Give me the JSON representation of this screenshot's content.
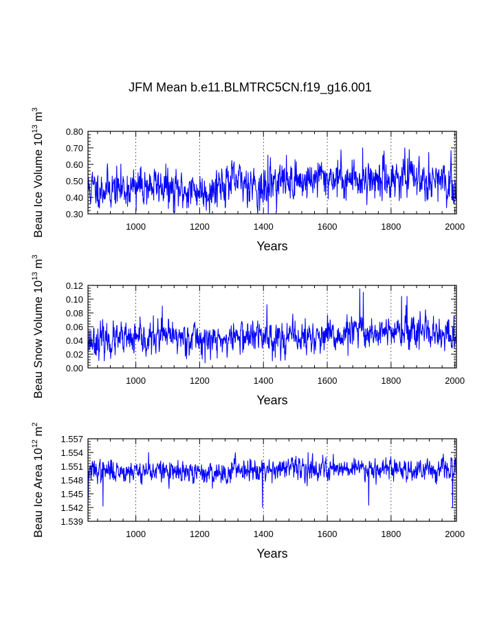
{
  "title": "JFM Mean b.e11.BLMTRC5CN.f19_g16.001",
  "line_color": "#0000ff",
  "chart_data": [
    {
      "type": "line",
      "name": "ice-volume",
      "ylabel": "Beau Ice Volume 10",
      "ylabel_sup": "13",
      "ylabel_unit": " m",
      "ylabel_unit_sup": "3",
      "xlabel": "Years",
      "xlim": [
        850,
        2005
      ],
      "ylim": [
        0.3,
        0.8
      ],
      "x_ticks": [
        1000,
        1200,
        1400,
        1600,
        1800,
        2000
      ],
      "x_tick_labels": [
        "1000",
        "1200",
        "1400",
        "1600",
        "1800",
        "2000"
      ],
      "y_ticks": [
        0.3,
        0.4,
        0.5,
        0.6,
        0.7,
        0.8
      ],
      "y_tick_labels": [
        "0.30",
        "0.40",
        "0.50",
        "0.60",
        "0.70",
        "0.80"
      ],
      "grid_x": "dashed",
      "series_params": {
        "x_start": 850,
        "x_end": 2005,
        "mean": 0.47,
        "sd": 0.055,
        "seed": 11,
        "segment_means": [
          [
            850,
            0.455
          ],
          [
            1000,
            0.47
          ],
          [
            1100,
            0.44
          ],
          [
            1250,
            0.49
          ],
          [
            1380,
            0.44
          ],
          [
            1420,
            0.5
          ],
          [
            1550,
            0.52
          ],
          [
            1650,
            0.51
          ],
          [
            1800,
            0.52
          ],
          [
            1950,
            0.47
          ]
        ],
        "spikes": [
          [
            1711,
            0.7
          ],
          [
            1843,
            0.7
          ],
          [
            1414,
            0.655
          ],
          [
            1388,
            0.32
          ],
          [
            1122,
            0.31
          ],
          [
            1001,
            0.32
          ]
        ]
      }
    },
    {
      "type": "line",
      "name": "snow-volume",
      "ylabel": "Beau Snow Volume 10",
      "ylabel_sup": "13",
      "ylabel_unit": " m",
      "ylabel_unit_sup": "3",
      "xlabel": "Years",
      "xlim": [
        850,
        2005
      ],
      "ylim": [
        0.0,
        0.12
      ],
      "x_ticks": [
        1000,
        1200,
        1400,
        1600,
        1800,
        2000
      ],
      "x_tick_labels": [
        "1000",
        "1200",
        "1400",
        "1600",
        "1800",
        "2000"
      ],
      "y_ticks": [
        0.0,
        0.02,
        0.04,
        0.06,
        0.08,
        0.1,
        0.12
      ],
      "y_tick_labels": [
        "0.00",
        "0.02",
        "0.04",
        "0.06",
        "0.08",
        "0.10",
        "0.12"
      ],
      "grid_x": "dashed",
      "series_params": {
        "x_start": 850,
        "x_end": 2005,
        "mean": 0.042,
        "sd": 0.011,
        "seed": 23,
        "segment_means": [
          [
            850,
            0.04
          ],
          [
            1050,
            0.045
          ],
          [
            1200,
            0.04
          ],
          [
            1300,
            0.046
          ],
          [
            1420,
            0.044
          ],
          [
            1650,
            0.052
          ],
          [
            1800,
            0.05
          ],
          [
            1900,
            0.046
          ],
          [
            1980,
            0.042
          ]
        ],
        "spikes": [
          [
            1702,
            0.115
          ],
          [
            1713,
            0.11
          ],
          [
            1411,
            0.092
          ],
          [
            1083,
            0.09
          ],
          [
            1833,
            0.104
          ],
          [
            1850,
            0.104
          ],
          [
            1665,
            0.018
          ],
          [
            1997,
            0.075
          ]
        ]
      }
    },
    {
      "type": "line",
      "name": "ice-area",
      "ylabel": "Beau Ice Area 10",
      "ylabel_sup": "12",
      "ylabel_unit": " m",
      "ylabel_unit_sup": "2",
      "xlabel": "Years",
      "xlim": [
        850,
        2005
      ],
      "ylim": [
        1.539,
        1.557
      ],
      "x_ticks": [
        1000,
        1200,
        1400,
        1600,
        1800,
        2000
      ],
      "x_tick_labels": [
        "1000",
        "1200",
        "1400",
        "1600",
        "1800",
        "2000"
      ],
      "y_ticks": [
        1.539,
        1.542,
        1.545,
        1.548,
        1.551,
        1.554,
        1.557
      ],
      "y_tick_labels": [
        "1.539",
        "1.542",
        "1.545",
        "1.548",
        "1.551",
        "1.554",
        "1.557"
      ],
      "grid_x": "dashed",
      "series_params": {
        "x_start": 850,
        "x_end": 2005,
        "mean": 1.5503,
        "sd": 0.0011,
        "seed": 37,
        "segment_means": [
          [
            850,
            1.55
          ],
          [
            1100,
            1.5495
          ],
          [
            1300,
            1.5505
          ],
          [
            1600,
            1.5507
          ],
          [
            1800,
            1.5503
          ]
        ],
        "spikes": [
          [
            1397,
            1.542
          ],
          [
            1730,
            1.5425
          ],
          [
            897,
            1.5423
          ],
          [
            1993,
            1.542
          ],
          [
            1540,
            1.554
          ],
          [
            1040,
            1.554
          ],
          [
            851,
            1.544
          ]
        ]
      }
    }
  ]
}
